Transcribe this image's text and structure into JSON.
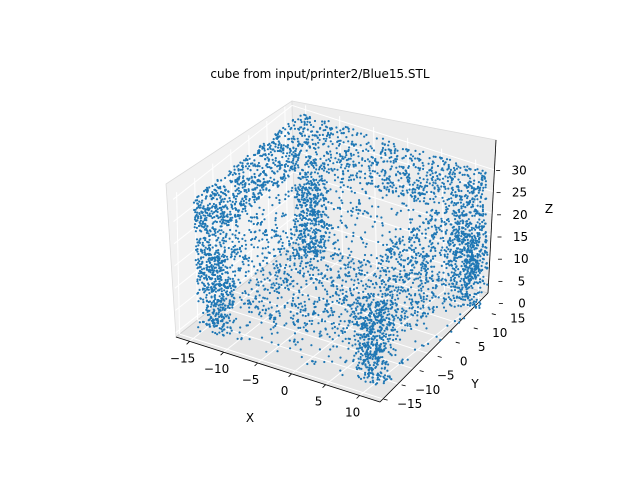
{
  "chart_data": {
    "type": "scatter",
    "projection": "3d",
    "title": "cube from input/printer2/Blue15.STL",
    "xlabel": "X",
    "ylabel": "Y",
    "zlabel": "Z",
    "x_ticks": [
      "−15",
      "−10",
      "−5",
      "0",
      "5",
      "10"
    ],
    "y_ticks": [
      "−15",
      "−10",
      "−5",
      "0",
      "5",
      "10",
      "15"
    ],
    "z_ticks": [
      "0",
      "5",
      "10",
      "15",
      "20",
      "25",
      "30"
    ],
    "xlim": [
      -17,
      13
    ],
    "ylim": [
      -16,
      17
    ],
    "zlim": [
      -1,
      31
    ],
    "series": [
      {
        "marker_color": "#1f77b4",
        "shape": "box with four corner legs and a perforated bottom",
        "x_range": [
          -15,
          12
        ],
        "y_range": [
          -14,
          16
        ],
        "z_range": [
          0,
          30
        ]
      }
    ],
    "grid": true,
    "pane_color": "#f2f2f2"
  }
}
